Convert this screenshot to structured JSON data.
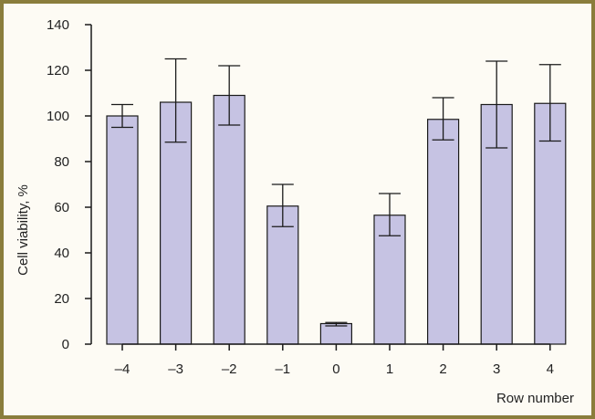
{
  "chart_data": {
    "type": "bar",
    "title": "",
    "xlabel": "Row number",
    "ylabel": "Cell viability, %",
    "categories": [
      "–4",
      "–3",
      "–2",
      "–1",
      "0",
      "1",
      "2",
      "3",
      "4"
    ],
    "values": [
      100,
      106,
      109,
      60.5,
      9,
      56.5,
      98.5,
      105,
      105.5
    ],
    "error_low": [
      95,
      88.5,
      96,
      51.5,
      8,
      47.5,
      89.5,
      86,
      89
    ],
    "error_high": [
      105,
      125,
      122,
      70,
      9.5,
      66,
      108,
      124,
      122.5
    ],
    "ylim": [
      0,
      140
    ],
    "yticks": [
      0,
      20,
      40,
      60,
      80,
      100,
      120,
      140
    ],
    "grid": false,
    "colors": {
      "bar_fill": "#c6c3e3",
      "bar_stroke": "#1a1a1a",
      "frame": "#8a7d3c",
      "background": "#fdfbf4"
    }
  }
}
